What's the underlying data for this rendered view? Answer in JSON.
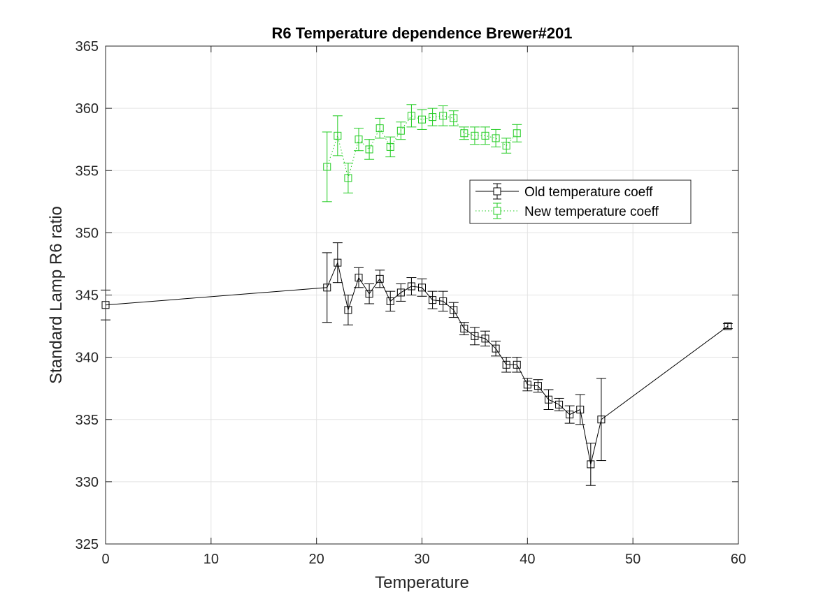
{
  "chart_data": {
    "type": "line",
    "title": "R6 Temperature dependence Brewer#201",
    "xlabel": "Temperature",
    "ylabel": "Standard Lamp R6 ratio",
    "xlim": [
      0,
      60
    ],
    "ylim": [
      325,
      365
    ],
    "xticks": [
      0,
      10,
      20,
      30,
      40,
      50,
      60
    ],
    "yticks": [
      325,
      330,
      335,
      340,
      345,
      350,
      355,
      360,
      365
    ],
    "grid": true,
    "legend_position": "upper-right-inside",
    "series": [
      {
        "name": "Old temperature coeff",
        "color": "#000000",
        "line_style": "solid",
        "marker": "square",
        "points": [
          {
            "x": 0,
            "y": 344.2,
            "err": 1.2
          },
          {
            "x": 21,
            "y": 345.6,
            "err": 2.8
          },
          {
            "x": 22,
            "y": 347.6,
            "err": 1.6
          },
          {
            "x": 23,
            "y": 343.8,
            "err": 1.2
          },
          {
            "x": 24,
            "y": 346.4,
            "err": 0.8
          },
          {
            "x": 25,
            "y": 345.1,
            "err": 0.8
          },
          {
            "x": 26,
            "y": 346.3,
            "err": 0.7
          },
          {
            "x": 27,
            "y": 344.5,
            "err": 0.8
          },
          {
            "x": 28,
            "y": 345.2,
            "err": 0.7
          },
          {
            "x": 29,
            "y": 345.7,
            "err": 0.7
          },
          {
            "x": 30,
            "y": 345.6,
            "err": 0.7
          },
          {
            "x": 31,
            "y": 344.6,
            "err": 0.7
          },
          {
            "x": 32,
            "y": 344.5,
            "err": 0.8
          },
          {
            "x": 33,
            "y": 343.8,
            "err": 0.6
          },
          {
            "x": 34,
            "y": 342.3,
            "err": 0.5
          },
          {
            "x": 35,
            "y": 341.7,
            "err": 0.7
          },
          {
            "x": 36,
            "y": 341.5,
            "err": 0.6
          },
          {
            "x": 37,
            "y": 340.7,
            "err": 0.6
          },
          {
            "x": 38,
            "y": 339.4,
            "err": 0.6
          },
          {
            "x": 39,
            "y": 339.4,
            "err": 0.6
          },
          {
            "x": 40,
            "y": 337.8,
            "err": 0.5
          },
          {
            "x": 41,
            "y": 337.7,
            "err": 0.5
          },
          {
            "x": 42,
            "y": 336.6,
            "err": 0.8
          },
          {
            "x": 43,
            "y": 336.2,
            "err": 0.5
          },
          {
            "x": 44,
            "y": 335.4,
            "err": 0.7
          },
          {
            "x": 45,
            "y": 335.8,
            "err": 1.2
          },
          {
            "x": 46,
            "y": 331.4,
            "err": 1.7
          },
          {
            "x": 47,
            "y": 335.0,
            "err": 3.3
          },
          {
            "x": 59,
            "y": 342.5,
            "err": 0.2
          }
        ]
      },
      {
        "name": "New temperature coeff",
        "color": "#22cc22",
        "line_style": "dotted",
        "marker": "square",
        "points": [
          {
            "x": 21,
            "y": 355.3,
            "err": 2.8
          },
          {
            "x": 22,
            "y": 357.8,
            "err": 1.6
          },
          {
            "x": 23,
            "y": 354.4,
            "err": 1.2
          },
          {
            "x": 24,
            "y": 357.5,
            "err": 0.9
          },
          {
            "x": 25,
            "y": 356.7,
            "err": 0.8
          },
          {
            "x": 26,
            "y": 358.4,
            "err": 0.8
          },
          {
            "x": 27,
            "y": 356.9,
            "err": 0.8
          },
          {
            "x": 28,
            "y": 358.2,
            "err": 0.7
          },
          {
            "x": 29,
            "y": 359.4,
            "err": 0.9
          },
          {
            "x": 30,
            "y": 359.1,
            "err": 0.8
          },
          {
            "x": 31,
            "y": 359.3,
            "err": 0.7
          },
          {
            "x": 32,
            "y": 359.4,
            "err": 0.8
          },
          {
            "x": 33,
            "y": 359.2,
            "err": 0.6
          },
          {
            "x": 34,
            "y": 358.0,
            "err": 0.5
          },
          {
            "x": 35,
            "y": 357.8,
            "err": 0.7
          },
          {
            "x": 36,
            "y": 357.8,
            "err": 0.7
          },
          {
            "x": 37,
            "y": 357.6,
            "err": 0.7
          },
          {
            "x": 38,
            "y": 357.0,
            "err": 0.6
          },
          {
            "x": 39,
            "y": 358.0,
            "err": 0.7
          }
        ]
      }
    ]
  }
}
